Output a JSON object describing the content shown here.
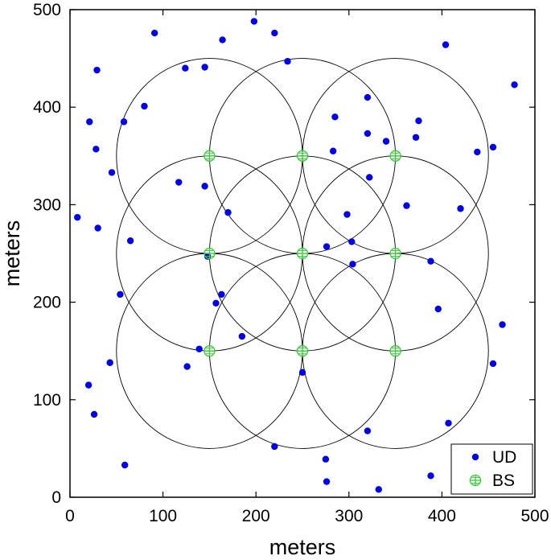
{
  "chart_data": {
    "type": "scatter",
    "title": "",
    "xlabel": "meters",
    "ylabel": "meters",
    "xlim": [
      0,
      500
    ],
    "ylim": [
      0,
      500
    ],
    "xticks": [
      0,
      100,
      200,
      300,
      400,
      500
    ],
    "yticks": [
      0,
      100,
      200,
      300,
      400,
      500
    ],
    "grid": false,
    "legend_position": "bottom-right",
    "circle_radius": 100,
    "series": [
      {
        "name": "UD",
        "marker": "filled-circle",
        "color": "#0000ee",
        "points": [
          [
            91,
            476
          ],
          [
            198,
            488
          ],
          [
            220,
            476
          ],
          [
            164,
            469
          ],
          [
            29,
            438
          ],
          [
            124,
            440
          ],
          [
            145,
            441
          ],
          [
            234,
            447
          ],
          [
            404,
            464
          ],
          [
            478,
            423
          ],
          [
            21,
            385
          ],
          [
            58,
            385
          ],
          [
            80,
            401
          ],
          [
            320,
            410
          ],
          [
            28,
            357
          ],
          [
            285,
            390
          ],
          [
            375,
            386
          ],
          [
            320,
            373
          ],
          [
            340,
            365
          ],
          [
            372,
            369
          ],
          [
            283,
            355
          ],
          [
            438,
            354
          ],
          [
            455,
            359
          ],
          [
            45,
            333
          ],
          [
            117,
            323
          ],
          [
            145,
            319
          ],
          [
            322,
            328
          ],
          [
            8,
            287
          ],
          [
            30,
            276
          ],
          [
            170,
            292
          ],
          [
            298,
            290
          ],
          [
            362,
            299
          ],
          [
            420,
            296
          ],
          [
            65,
            263
          ],
          [
            148,
            247
          ],
          [
            276,
            257
          ],
          [
            303,
            262
          ],
          [
            304,
            239
          ],
          [
            388,
            242
          ],
          [
            54,
            208
          ],
          [
            157,
            199
          ],
          [
            163,
            208
          ],
          [
            396,
            193
          ],
          [
            465,
            177
          ],
          [
            185,
            165
          ],
          [
            139,
            152
          ],
          [
            126,
            134
          ],
          [
            250,
            128
          ],
          [
            43,
            138
          ],
          [
            455,
            137
          ],
          [
            20,
            115
          ],
          [
            26,
            85
          ],
          [
            407,
            76
          ],
          [
            320,
            68
          ],
          [
            220,
            52
          ],
          [
            59,
            33
          ],
          [
            275,
            39
          ],
          [
            388,
            22
          ],
          [
            276,
            16
          ],
          [
            332,
            8
          ]
        ]
      },
      {
        "name": "BS",
        "marker": "crossed-circle",
        "color": "#33cc33",
        "points": [
          [
            150,
            350
          ],
          [
            250,
            350
          ],
          [
            350,
            350
          ],
          [
            150,
            250
          ],
          [
            250,
            250
          ],
          [
            350,
            250
          ],
          [
            150,
            150
          ],
          [
            250,
            150
          ],
          [
            350,
            150
          ]
        ]
      }
    ]
  }
}
